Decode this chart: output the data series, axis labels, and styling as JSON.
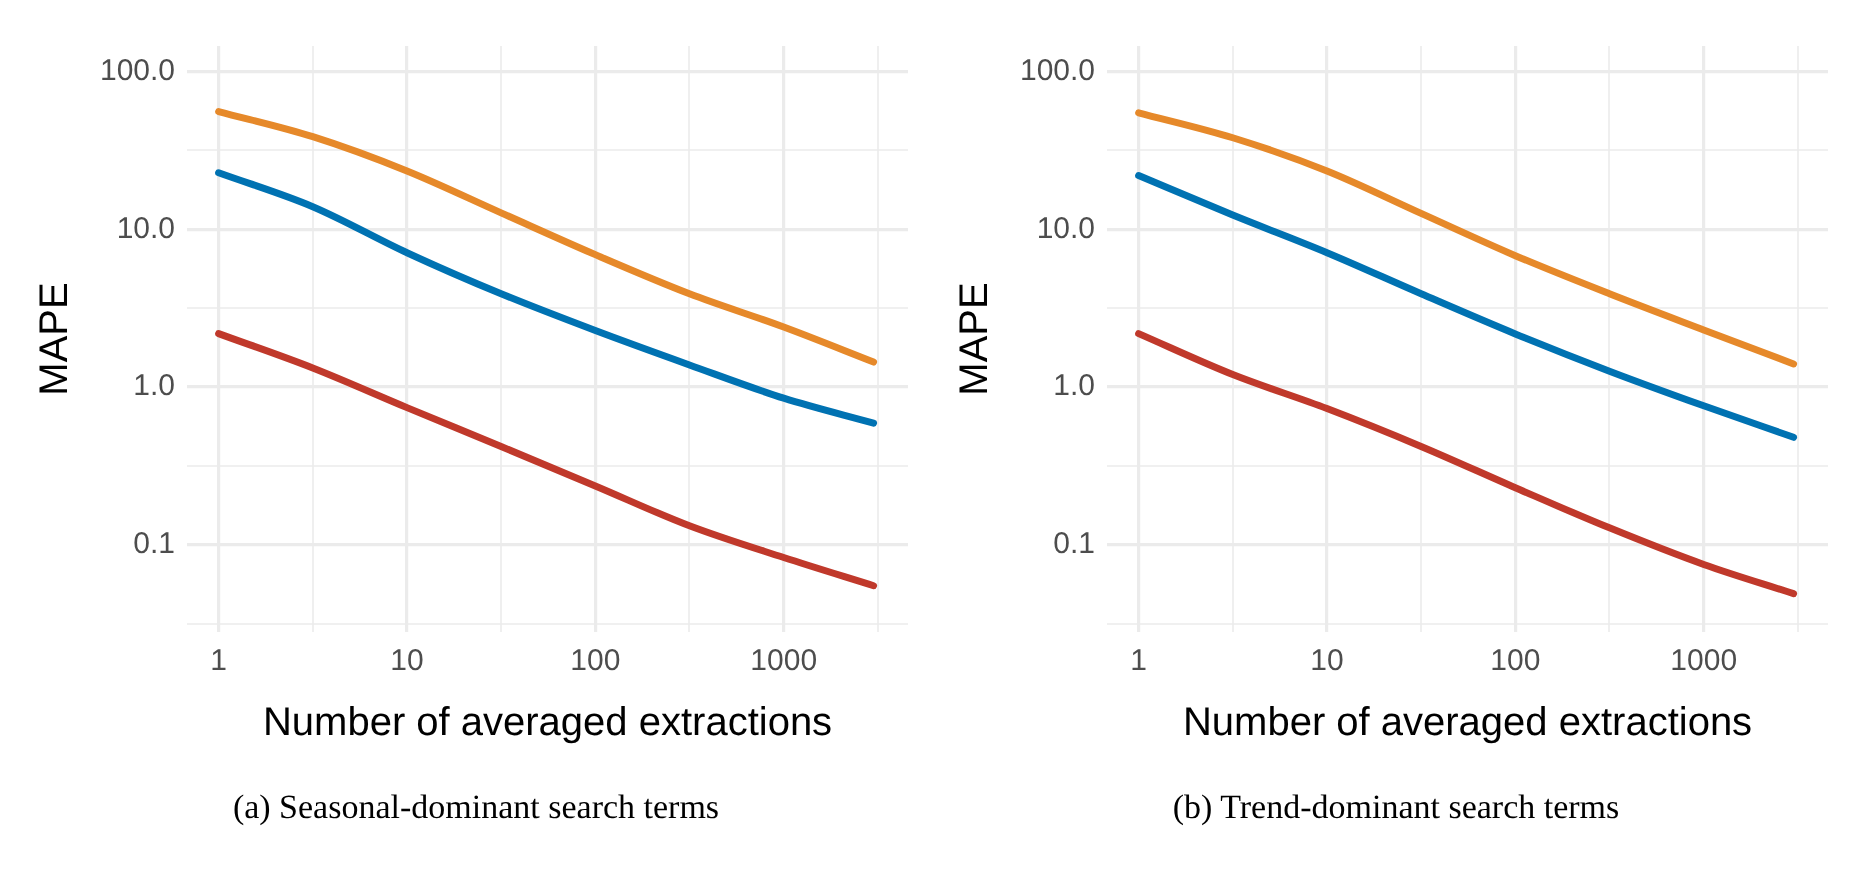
{
  "chart_data": [
    {
      "type": "line",
      "xlabel": "Number of averaged extractions",
      "ylabel": "MAPE",
      "annotations": [
        "(a) Seasonal-dominant search terms"
      ],
      "log": "xy",
      "grid": true,
      "x": [
        1,
        3.16,
        10,
        31.6,
        100,
        316,
        1000,
        3000
      ],
      "series": [
        {
          "color": "#e6892a",
          "values": [
            55.7,
            38.6,
            23.4,
            12.7,
            6.9,
            3.9,
            2.4,
            1.44
          ]
        },
        {
          "color": "#0072b2",
          "values": [
            22.8,
            13.9,
            7.1,
            3.9,
            2.28,
            1.38,
            0.85,
            0.59
          ]
        },
        {
          "color": "#c0392b",
          "values": [
            2.18,
            1.32,
            0.74,
            0.42,
            0.236,
            0.132,
            0.083,
            0.055
          ]
        }
      ],
      "xlim": [
        0.68,
        4570
      ],
      "ylim": [
        0.028,
        145
      ],
      "xticks": [
        1,
        {
          "value": 3.16,
          "label": null
        },
        10,
        {
          "value": 31.6,
          "label": null
        },
        100,
        {
          "value": 316,
          "label": null
        },
        1000,
        {
          "value": 3160,
          "label": null
        }
      ],
      "yticks": [
        {
          "value": 0.0316,
          "label": null
        },
        0.1,
        {
          "value": 0.316,
          "label": null
        },
        {
          "value": 1,
          "label": "1.0"
        },
        {
          "value": 3.16,
          "label": null
        },
        {
          "value": 10,
          "label": "10.0"
        },
        {
          "value": 31.6,
          "label": null
        },
        {
          "value": 100,
          "label": "100.0"
        }
      ]
    },
    {
      "type": "line",
      "xlabel": "Number of averaged extractions",
      "ylabel": "MAPE",
      "annotations": [
        "(b) Trend-dominant search terms"
      ],
      "log": "xy",
      "grid": true,
      "x": [
        1,
        3.16,
        10,
        31.6,
        100,
        316,
        1000,
        3000
      ],
      "series": [
        {
          "color": "#e6892a",
          "values": [
            54.7,
            38,
            23.4,
            12.6,
            6.8,
            3.9,
            2.3,
            1.4
          ]
        },
        {
          "color": "#0072b2",
          "values": [
            21.9,
            12.3,
            7.1,
            3.9,
            2.17,
            1.26,
            0.76,
            0.48
          ]
        },
        {
          "color": "#c0392b",
          "values": [
            2.18,
            1.2,
            0.73,
            0.42,
            0.23,
            0.128,
            0.075,
            0.049
          ]
        }
      ],
      "xlim": [
        0.68,
        4570
      ],
      "ylim": [
        0.028,
        145
      ],
      "xticks": [
        1,
        {
          "value": 3.16,
          "label": null
        },
        10,
        {
          "value": 31.6,
          "label": null
        },
        100,
        {
          "value": 316,
          "label": null
        },
        1000,
        {
          "value": 3160,
          "label": null
        }
      ],
      "yticks": [
        {
          "value": 0.0316,
          "label": null
        },
        0.1,
        {
          "value": 0.316,
          "label": null
        },
        {
          "value": 1,
          "label": "1.0"
        },
        {
          "value": 3.16,
          "label": null
        },
        {
          "value": 10,
          "label": "10.0"
        },
        {
          "value": 31.6,
          "label": null
        },
        {
          "value": 100,
          "label": "100.0"
        }
      ]
    }
  ]
}
